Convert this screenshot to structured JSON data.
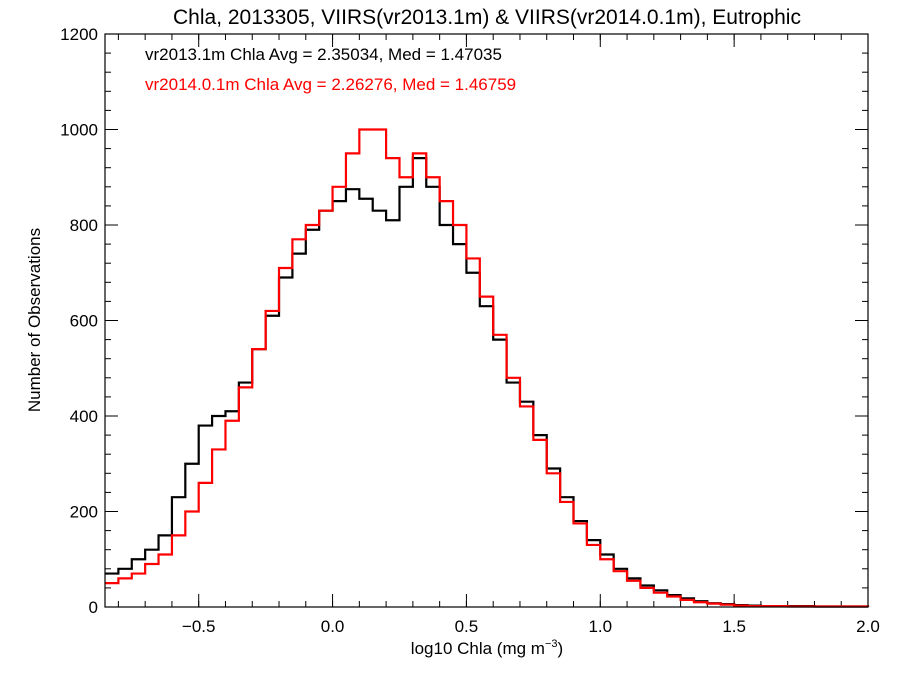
{
  "chart_data": {
    "type": "histogram-step",
    "title": "Chla, 2013305, VIIRS(vr2013.1m) & VIIRS(vr2014.0.1m), Eutrophic",
    "xlabel_main": "log10 Chla (mg m",
    "xlabel_sup": "−3",
    "xlabel_close": ")",
    "ylabel": "Number of Observations",
    "xlim": [
      -0.85,
      2.0
    ],
    "ylim": [
      0,
      1200
    ],
    "xticks": [
      {
        "value": -0.5,
        "label": "−0.5"
      },
      {
        "value": 0.0,
        "label": "0.0"
      },
      {
        "value": 0.5,
        "label": "0.5"
      },
      {
        "value": 1.0,
        "label": "1.0"
      },
      {
        "value": 1.5,
        "label": "1.5"
      },
      {
        "value": 2.0,
        "label": "2.0"
      }
    ],
    "xminor_step": 0.1,
    "yticks": [
      {
        "value": 0,
        "label": "0"
      },
      {
        "value": 200,
        "label": "200"
      },
      {
        "value": 400,
        "label": "400"
      },
      {
        "value": 600,
        "label": "600"
      },
      {
        "value": 800,
        "label": "800"
      },
      {
        "value": 1000,
        "label": "1000"
      },
      {
        "value": 1200,
        "label": "1200"
      }
    ],
    "yminor_step": 40,
    "annotations": [
      {
        "text": "vr2013.1m Chla Avg = 2.35034, Med = 1.47035",
        "color": "#000000"
      },
      {
        "text": "vr2014.0.1m Chla Avg = 2.26276, Med = 1.46759",
        "color": "#ff0000"
      }
    ],
    "series": [
      {
        "color": "#000000",
        "x": [
          -0.85,
          -0.8,
          -0.75,
          -0.7,
          -0.65,
          -0.6,
          -0.55,
          -0.5,
          -0.45,
          -0.4,
          -0.35,
          -0.3,
          -0.25,
          -0.2,
          -0.15,
          -0.1,
          -0.05,
          0.0,
          0.05,
          0.1,
          0.15,
          0.2,
          0.25,
          0.3,
          0.35,
          0.4,
          0.45,
          0.5,
          0.55,
          0.6,
          0.65,
          0.7,
          0.75,
          0.8,
          0.85,
          0.9,
          0.95,
          1.0,
          1.05,
          1.1,
          1.15,
          1.2,
          1.25,
          1.3,
          1.35,
          1.4,
          1.45,
          1.5,
          1.55,
          1.6,
          1.7,
          1.8,
          1.9,
          2.0
        ],
        "y": [
          70,
          80,
          100,
          120,
          150,
          230,
          300,
          380,
          400,
          410,
          470,
          540,
          610,
          690,
          740,
          790,
          830,
          850,
          875,
          855,
          830,
          810,
          880,
          940,
          880,
          800,
          760,
          700,
          630,
          560,
          470,
          430,
          360,
          290,
          230,
          180,
          140,
          110,
          80,
          60,
          45,
          35,
          25,
          18,
          12,
          8,
          6,
          4,
          3,
          2,
          2,
          1,
          1,
          0
        ]
      },
      {
        "color": "#ff0000",
        "x": [
          -0.85,
          -0.8,
          -0.75,
          -0.7,
          -0.65,
          -0.6,
          -0.55,
          -0.5,
          -0.45,
          -0.4,
          -0.35,
          -0.3,
          -0.25,
          -0.2,
          -0.15,
          -0.1,
          -0.05,
          0.0,
          0.05,
          0.1,
          0.15,
          0.2,
          0.25,
          0.3,
          0.35,
          0.4,
          0.45,
          0.5,
          0.55,
          0.6,
          0.65,
          0.7,
          0.75,
          0.8,
          0.85,
          0.9,
          0.95,
          1.0,
          1.05,
          1.1,
          1.15,
          1.2,
          1.25,
          1.3,
          1.35,
          1.4,
          1.45,
          1.5,
          1.55,
          1.6,
          1.7,
          1.8,
          1.9,
          2.0
        ],
        "y": [
          50,
          60,
          70,
          90,
          110,
          150,
          200,
          260,
          330,
          390,
          460,
          540,
          620,
          710,
          770,
          800,
          830,
          880,
          950,
          1000,
          1000,
          940,
          900,
          950,
          900,
          850,
          800,
          730,
          650,
          570,
          480,
          420,
          350,
          280,
          220,
          175,
          130,
          100,
          75,
          55,
          40,
          30,
          22,
          15,
          10,
          7,
          5,
          3,
          2,
          2,
          1,
          1,
          1,
          0
        ]
      }
    ]
  }
}
